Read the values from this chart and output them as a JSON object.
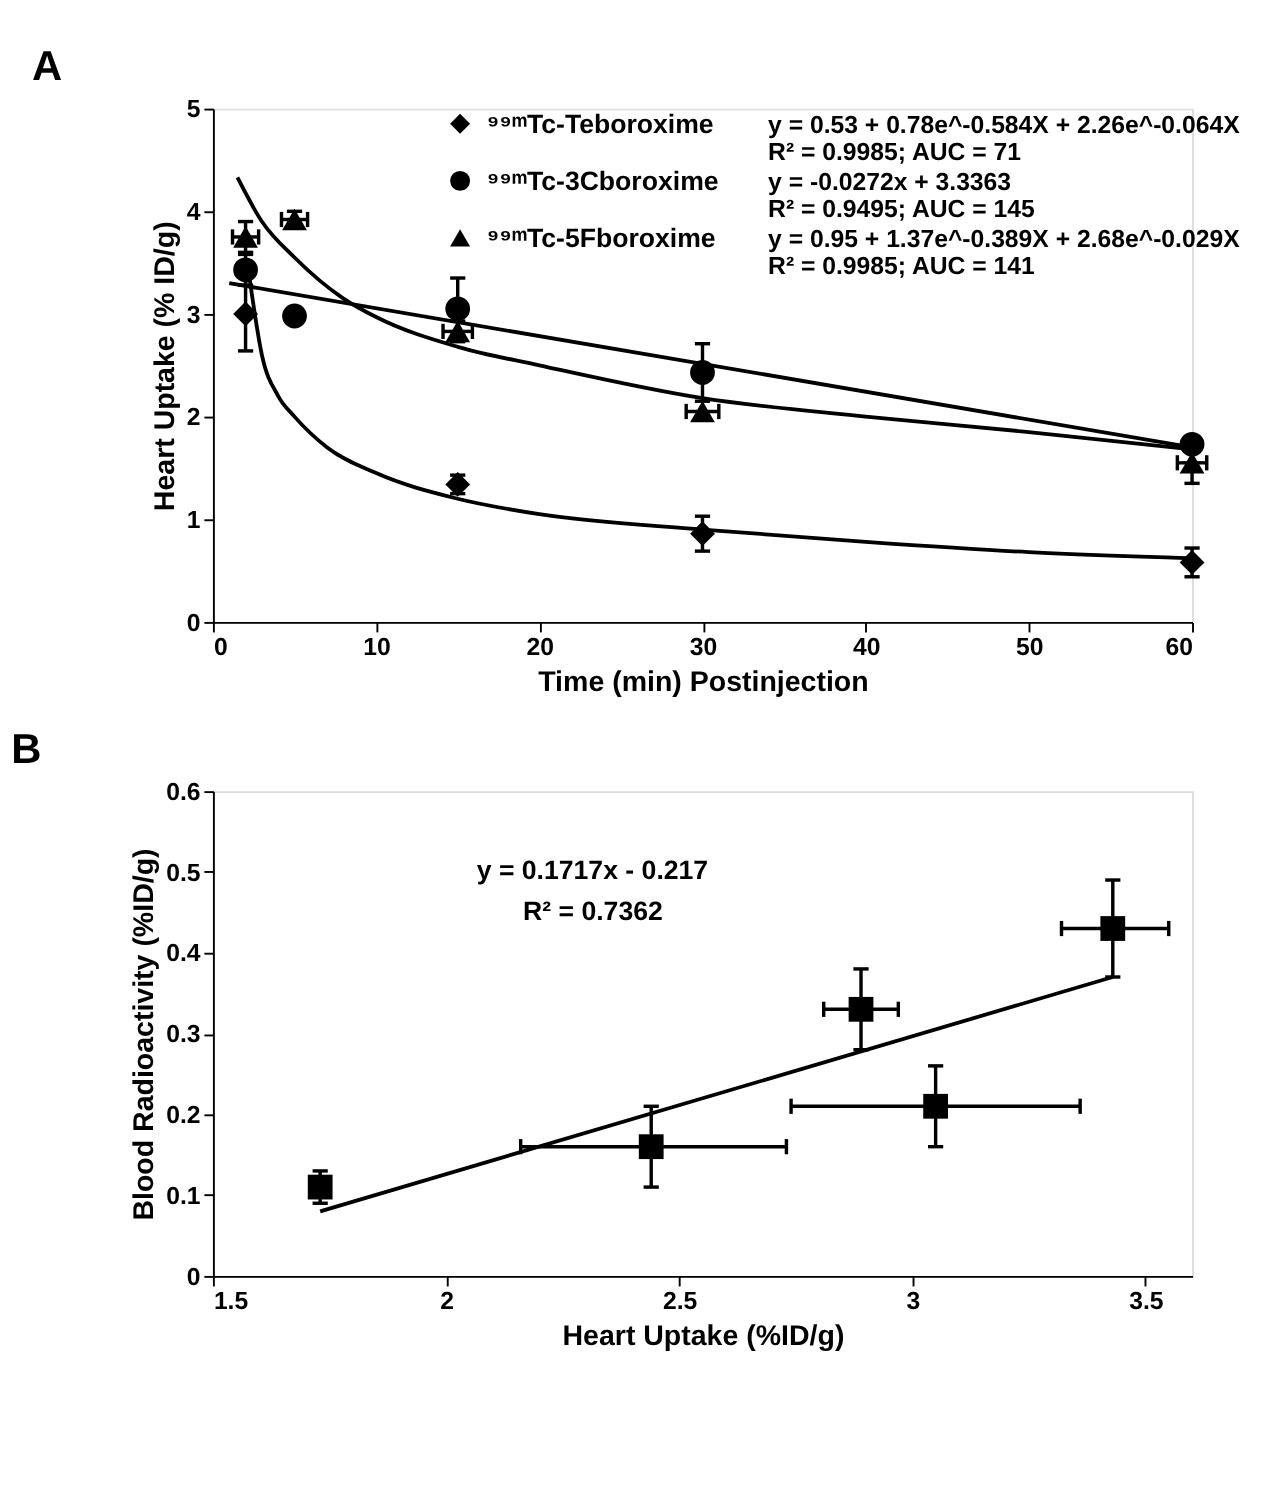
{
  "chart_data": [
    {
      "type": "scatter",
      "title": "A",
      "xlabel": "Time (min) Postinjection",
      "ylabel": "Heart Uptake (% ID/g)",
      "xlim": [
        0,
        60
      ],
      "ylim": [
        0,
        5
      ],
      "xticks": [
        0,
        10,
        20,
        30,
        40,
        50,
        60
      ],
      "yticks": [
        0,
        1,
        2,
        3,
        4,
        5
      ],
      "grid": false,
      "legend": "top",
      "annotations": [
        "y = 0.53 + 0.78e^-0.584X + 2.26e^-0.064X",
        "R² = 0.9985;  AUC = 71",
        "y = -0.0272x + 3.3363",
        "R² = 0.9495;  AUC = 145",
        "y = 0.95 + 1.37e^-0.389X + 2.68e^-0.029X",
        "R² = 0.9985;  AUC = 141"
      ],
      "series": [
        {
          "type": "line",
          "color": "#000000",
          "marker": "none",
          "x": [
            2.2,
            3,
            4,
            5,
            7,
            10,
            15,
            20,
            30,
            40,
            50,
            60
          ],
          "values": [
            3.4,
            2.6,
            2.2,
            2.0,
            1.7,
            1.45,
            1.2,
            1.05,
            0.9,
            0.78,
            0.68,
            0.62
          ]
        },
        {
          "type": "line",
          "color": "#000000",
          "marker": "none",
          "x": [
            1,
            60
          ],
          "values": [
            3.3,
            1.7
          ]
        },
        {
          "type": "line",
          "color": "#000000",
          "marker": "none",
          "x": [
            1.5,
            3,
            5,
            8,
            10,
            15,
            20,
            30,
            40,
            50,
            60
          ],
          "values": [
            4.33,
            3.9,
            3.55,
            3.15,
            2.97,
            2.68,
            2.5,
            2.18,
            2.0,
            1.85,
            1.68
          ]
        },
        {
          "name": "⁹⁹ᵐTc-Teboroxime",
          "type": "scatter",
          "marker": "diamond",
          "color": "#000000",
          "x": [
            2,
            15,
            30,
            60
          ],
          "values": [
            3.0,
            1.34,
            0.86,
            0.58
          ],
          "errors": [
            0.36,
            0.09,
            0.17,
            0.14
          ]
        },
        {
          "name": "⁹⁹ᵐTc-3Cboroxime",
          "type": "scatter",
          "marker": "circle",
          "color": "#000000",
          "x": [
            2,
            5,
            15,
            30,
            60
          ],
          "values": [
            3.43,
            2.98,
            3.05,
            2.43,
            1.73
          ],
          "errors": [
            0.15,
            null,
            0.3,
            0.28,
            null
          ]
        },
        {
          "name": "⁹⁹ᵐTc-5Fboroxime",
          "type": "scatter",
          "marker": "triangle",
          "color": "#000000",
          "x": [
            2,
            5,
            15,
            30,
            60
          ],
          "values": [
            3.75,
            3.92,
            2.83,
            2.05,
            1.55
          ],
          "errors": [
            0.15,
            0.08,
            0.1,
            null,
            0.2
          ],
          "xerrors": [
            0.8,
            0.8,
            0.9,
            1,
            0.9
          ]
        }
      ]
    },
    {
      "type": "scatter",
      "title": "B",
      "xlabel": "Heart Uptake (%ID/g)",
      "ylabel": "Blood Radioactivity (%ID/g)",
      "xlim": [
        1.5,
        3.6
      ],
      "ylim": [
        0,
        0.6
      ],
      "xticks": [
        1.5,
        2,
        2.5,
        3,
        3.5
      ],
      "yticks": [
        0,
        0.1,
        0.2,
        0.3,
        0.4,
        0.5,
        0.6
      ],
      "grid": false,
      "annotations": [
        "y = 0.1717x - 0.217",
        "R² = 0.7362"
      ],
      "series": [
        {
          "type": "scatter",
          "marker": "square",
          "color": "#000000",
          "x": [
            1.73,
            2.44,
            2.89,
            3.05,
            3.43
          ],
          "values": [
            0.11,
            0.16,
            0.33,
            0.21,
            0.43
          ],
          "errors": [
            0.02,
            0.05,
            0.05,
            0.05,
            0.06
          ],
          "xerrors": [
            0.02,
            [
              2.16,
              2.73
            ],
            [
              2.81,
              2.97
            ],
            [
              2.74,
              3.36
            ],
            [
              3.32,
              3.55
            ]
          ]
        },
        {
          "type": "line",
          "color": "#000000",
          "marker": "none",
          "x": [
            1.73,
            3.43
          ],
          "values": [
            0.08,
            0.37
          ]
        }
      ]
    }
  ]
}
